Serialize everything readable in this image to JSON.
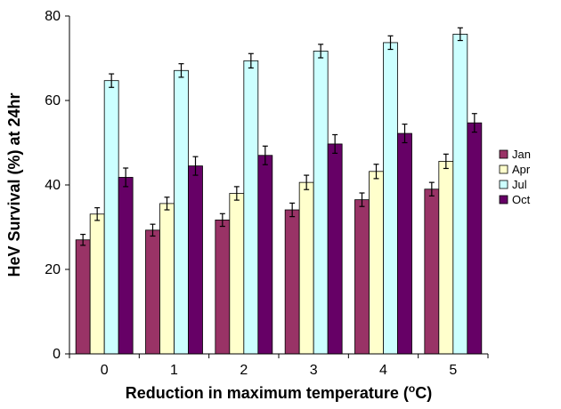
{
  "chart_data": {
    "type": "bar",
    "xlabel": "Reduction in maximum temperature (",
    "xlabel_sup": "o",
    "xlabel_tail": "C)",
    "ylabel": "HeV Survival (%) at 24hr",
    "categories": [
      "0",
      "1",
      "2",
      "3",
      "4",
      "5"
    ],
    "ylim": [
      0,
      80
    ],
    "yticks": [
      "0",
      "20",
      "40",
      "60",
      "80"
    ],
    "grid": false,
    "legend_position": "right",
    "series": [
      {
        "name": "Jan",
        "color": "#993366",
        "values": [
          27.0,
          29.3,
          31.7,
          34.1,
          36.5,
          39.0
        ],
        "errors": [
          1.3,
          1.4,
          1.5,
          1.6,
          1.6,
          1.6
        ]
      },
      {
        "name": "Apr",
        "color": "#ffffcc",
        "values": [
          33.1,
          35.6,
          38.0,
          40.6,
          43.2,
          45.6
        ],
        "errors": [
          1.5,
          1.5,
          1.6,
          1.7,
          1.7,
          1.7
        ]
      },
      {
        "name": "Jul",
        "color": "#ccffff",
        "values": [
          64.7,
          67.1,
          69.4,
          71.7,
          73.7,
          75.7
        ],
        "errors": [
          1.6,
          1.6,
          1.7,
          1.6,
          1.6,
          1.5
        ]
      },
      {
        "name": "Oct",
        "color": "#660066",
        "values": [
          41.8,
          44.5,
          47.0,
          49.7,
          52.2,
          54.7
        ],
        "errors": [
          2.2,
          2.2,
          2.2,
          2.2,
          2.2,
          2.2
        ]
      }
    ]
  }
}
